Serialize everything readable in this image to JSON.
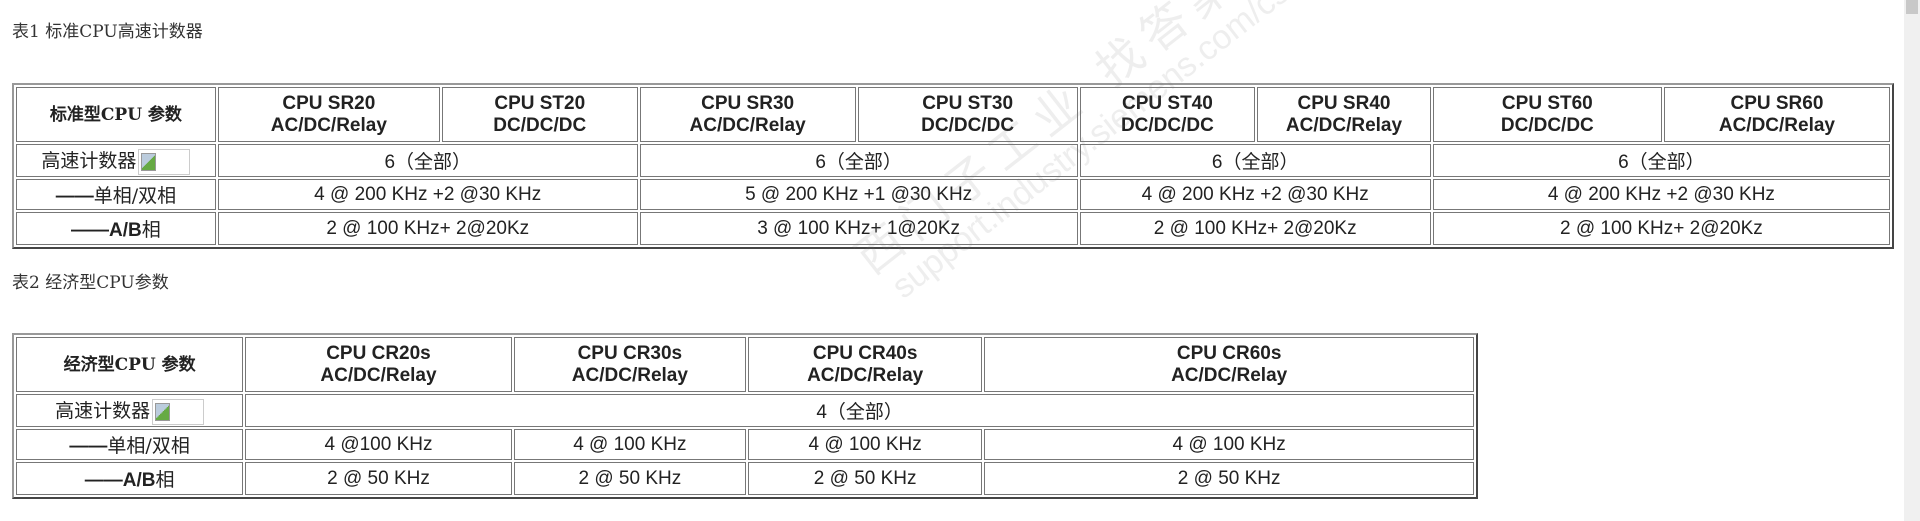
{
  "table1": {
    "caption": "表1 标准CPU高速计数器",
    "header_label": "标准型CPU 参数",
    "models": [
      {
        "name": "CPU SR20",
        "type": "AC/DC/Relay"
      },
      {
        "name": "CPU ST20",
        "type": "DC/DC/DC"
      },
      {
        "name": "CPU SR30",
        "type": "AC/DC/Relay"
      },
      {
        "name": "CPU ST30",
        "type": "DC/DC/DC"
      },
      {
        "name": "CPU ST40",
        "type": "DC/DC/DC"
      },
      {
        "name": "CPU SR40",
        "type": "AC/DC/Relay"
      },
      {
        "name": "CPU ST60",
        "type": "DC/DC/DC"
      },
      {
        "name": "CPU SR60",
        "type": "AC/DC/Relay"
      }
    ],
    "rows": [
      {
        "label": "高速计数器",
        "has_image": true,
        "values": [
          "6（全部）",
          "6（全部）",
          "6（全部）",
          "6（全部）"
        ]
      },
      {
        "label_prefix": "——",
        "label": "单相/双相",
        "values": [
          "4 @ 200 KHz +2 @30 KHz",
          "5 @ 200 KHz +1 @30 KHz",
          "4 @ 200 KHz +2 @30 KHz",
          "4 @ 200 KHz +2 @30 KHz"
        ]
      },
      {
        "label_prefix": "——",
        "label_bold": "A/B",
        "label": "相",
        "values": [
          "2 @ 100 KHz+ 2@20Kz",
          "3 @ 100 KHz+ 1@20Kz",
          "2 @ 100 KHz+ 2@20Kz",
          "2 @ 100 KHz+ 2@20Kz"
        ]
      }
    ]
  },
  "table2": {
    "caption": "表2 经济型CPU参数",
    "header_label": "经济型CPU 参数",
    "models": [
      {
        "name": "CPU CR20s",
        "type": "AC/DC/Relay"
      },
      {
        "name": "CPU CR30s",
        "type": "AC/DC/Relay"
      },
      {
        "name": "CPU CR40s",
        "type": "AC/DC/Relay"
      },
      {
        "name": "CPU CR60s",
        "type": "AC/DC/Relay"
      }
    ],
    "rows": [
      {
        "label": "高速计数器",
        "has_image": true,
        "values": [
          "4（全部）"
        ]
      },
      {
        "label_prefix": "——",
        "label": "单相/双相",
        "values": [
          "4 @100 KHz",
          "4 @ 100 KHz",
          "4 @ 100 KHz",
          "4 @ 100 KHz"
        ]
      },
      {
        "label_prefix": "——",
        "label_bold": "A/B",
        "label": "相",
        "values": [
          "2 @ 50 KHz",
          "2 @ 50 KHz",
          "2 @ 50 KHz",
          "2 @ 50 KHz"
        ]
      }
    ]
  },
  "watermark": {
    "line1": "西门子工业 找答案",
    "line2": "support.industry.siemens.com/cs"
  },
  "icons": {
    "broken_image": "broken-image-icon"
  }
}
